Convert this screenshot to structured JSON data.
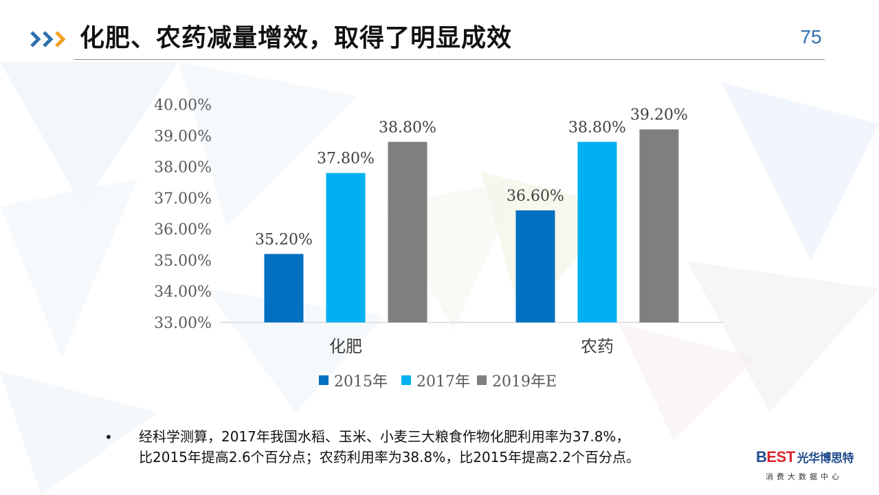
{
  "header": {
    "title": "化肥、农药减量增效，取得了明显成效",
    "page_number": "75"
  },
  "colors": {
    "series_2015": "#0070c0",
    "series_2017": "#00b0f0",
    "series_2019": "#7f7f7f",
    "accent_chevron_blue": "#2e6fb0",
    "accent_chevron_orange": "#f0a020"
  },
  "chart_data": {
    "type": "bar",
    "categories": [
      "化肥",
      "农药"
    ],
    "series": [
      {
        "name": "2015年",
        "values": [
          35.2,
          36.6
        ]
      },
      {
        "name": "2017年",
        "values": [
          37.8,
          38.8
        ]
      },
      {
        "name": "2019年E",
        "values": [
          38.8,
          39.2
        ]
      }
    ],
    "data_labels": [
      [
        "35.20%",
        "36.60%"
      ],
      [
        "37.80%",
        "38.80%"
      ],
      [
        "38.80%",
        "39.20%"
      ]
    ],
    "ylim": [
      33,
      40
    ],
    "y_ticks": [
      "33.00%",
      "34.00%",
      "35.00%",
      "36.00%",
      "37.00%",
      "38.00%",
      "39.00%",
      "40.00%"
    ],
    "grid": false,
    "legend_position": "bottom"
  },
  "note": {
    "bullet": "•",
    "lines": [
      "经科学测算，2017年我国水稻、玉米、小麦三大粮食作物化肥利用率为37.8%，",
      "比2015年提高2.6个百分点；农药利用率为38.8%，比2015年提高2.2个百分点。"
    ]
  },
  "brand": {
    "logo_b": "B",
    "logo_est": "EST",
    "logo_cn": "光华博思特",
    "subtitle": "消费大数据中心"
  }
}
